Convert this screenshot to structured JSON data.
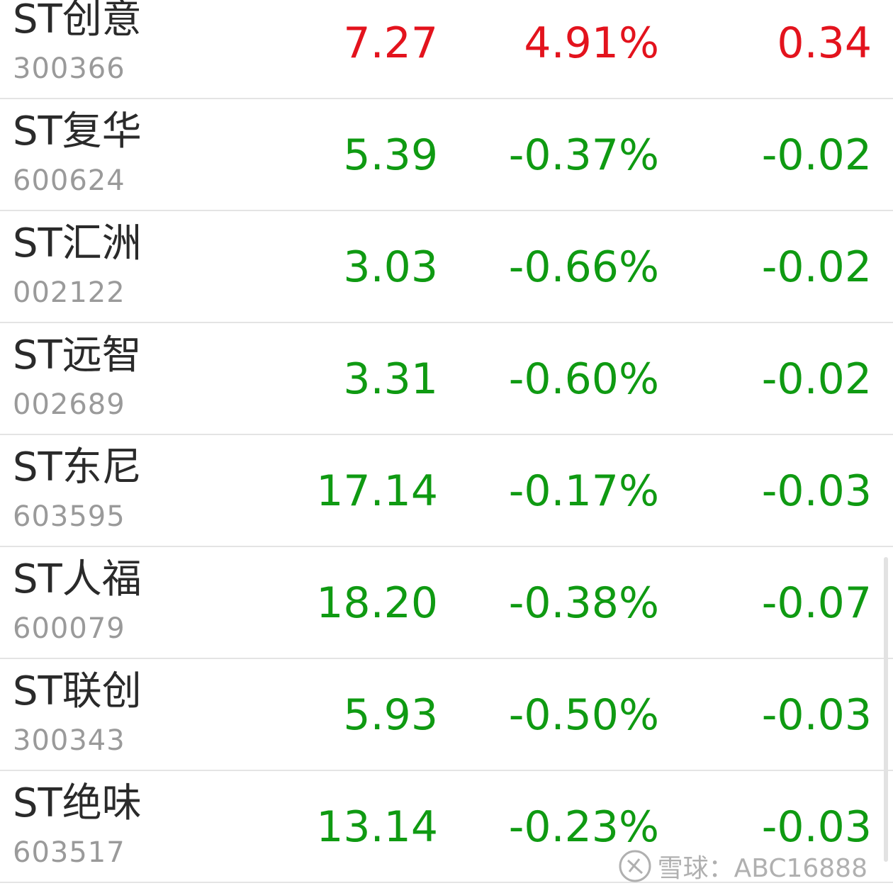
{
  "colors": {
    "up": "#e3131d",
    "down": "#0f9a12"
  },
  "rows": [
    {
      "name": "ST创意",
      "code": "300366",
      "price": "7.27",
      "change_pct": "4.91%",
      "change": "0.34"
    },
    {
      "name": "ST复华",
      "code": "600624",
      "price": "5.39",
      "change_pct": "-0.37%",
      "change": "-0.02"
    },
    {
      "name": "ST汇洲",
      "code": "002122",
      "price": "3.03",
      "change_pct": "-0.66%",
      "change": "-0.02"
    },
    {
      "name": "ST远智",
      "code": "002689",
      "price": "3.31",
      "change_pct": "-0.60%",
      "change": "-0.02"
    },
    {
      "name": "ST东尼",
      "code": "603595",
      "price": "17.14",
      "change_pct": "-0.17%",
      "change": "-0.03"
    },
    {
      "name": "ST人福",
      "code": "600079",
      "price": "18.20",
      "change_pct": "-0.38%",
      "change": "-0.07"
    },
    {
      "name": "ST联创",
      "code": "300343",
      "price": "5.93",
      "change_pct": "-0.50%",
      "change": "-0.03"
    },
    {
      "name": "ST绝味",
      "code": "603517",
      "price": "13.14",
      "change_pct": "-0.23%",
      "change": "-0.03"
    }
  ],
  "watermark": "雪球：ABC16888"
}
